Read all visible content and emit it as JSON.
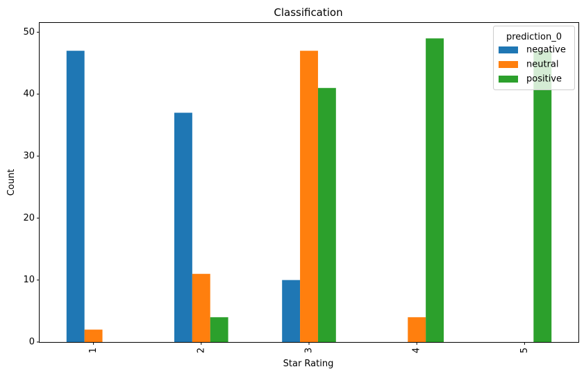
{
  "chart_data": {
    "type": "bar",
    "title": "Classification",
    "xlabel": "Star Rating",
    "ylabel": "Count",
    "categories": [
      "1",
      "2",
      "3",
      "4",
      "5"
    ],
    "series": [
      {
        "name": "negative",
        "color": "#1f77b4",
        "values": [
          47,
          37,
          10,
          0,
          0
        ]
      },
      {
        "name": "neutral",
        "color": "#ff7f0e",
        "values": [
          2,
          11,
          47,
          4,
          0
        ]
      },
      {
        "name": "positive",
        "color": "#2ca02c",
        "values": [
          0,
          4,
          41,
          49,
          47
        ]
      }
    ],
    "ylim": [
      0,
      51.5
    ],
    "yticks": [
      "0",
      "10",
      "20",
      "30",
      "40",
      "50"
    ],
    "legend": {
      "title": "prediction_0",
      "position": "top-right"
    },
    "grid": false,
    "xtick_rotation": 90
  }
}
